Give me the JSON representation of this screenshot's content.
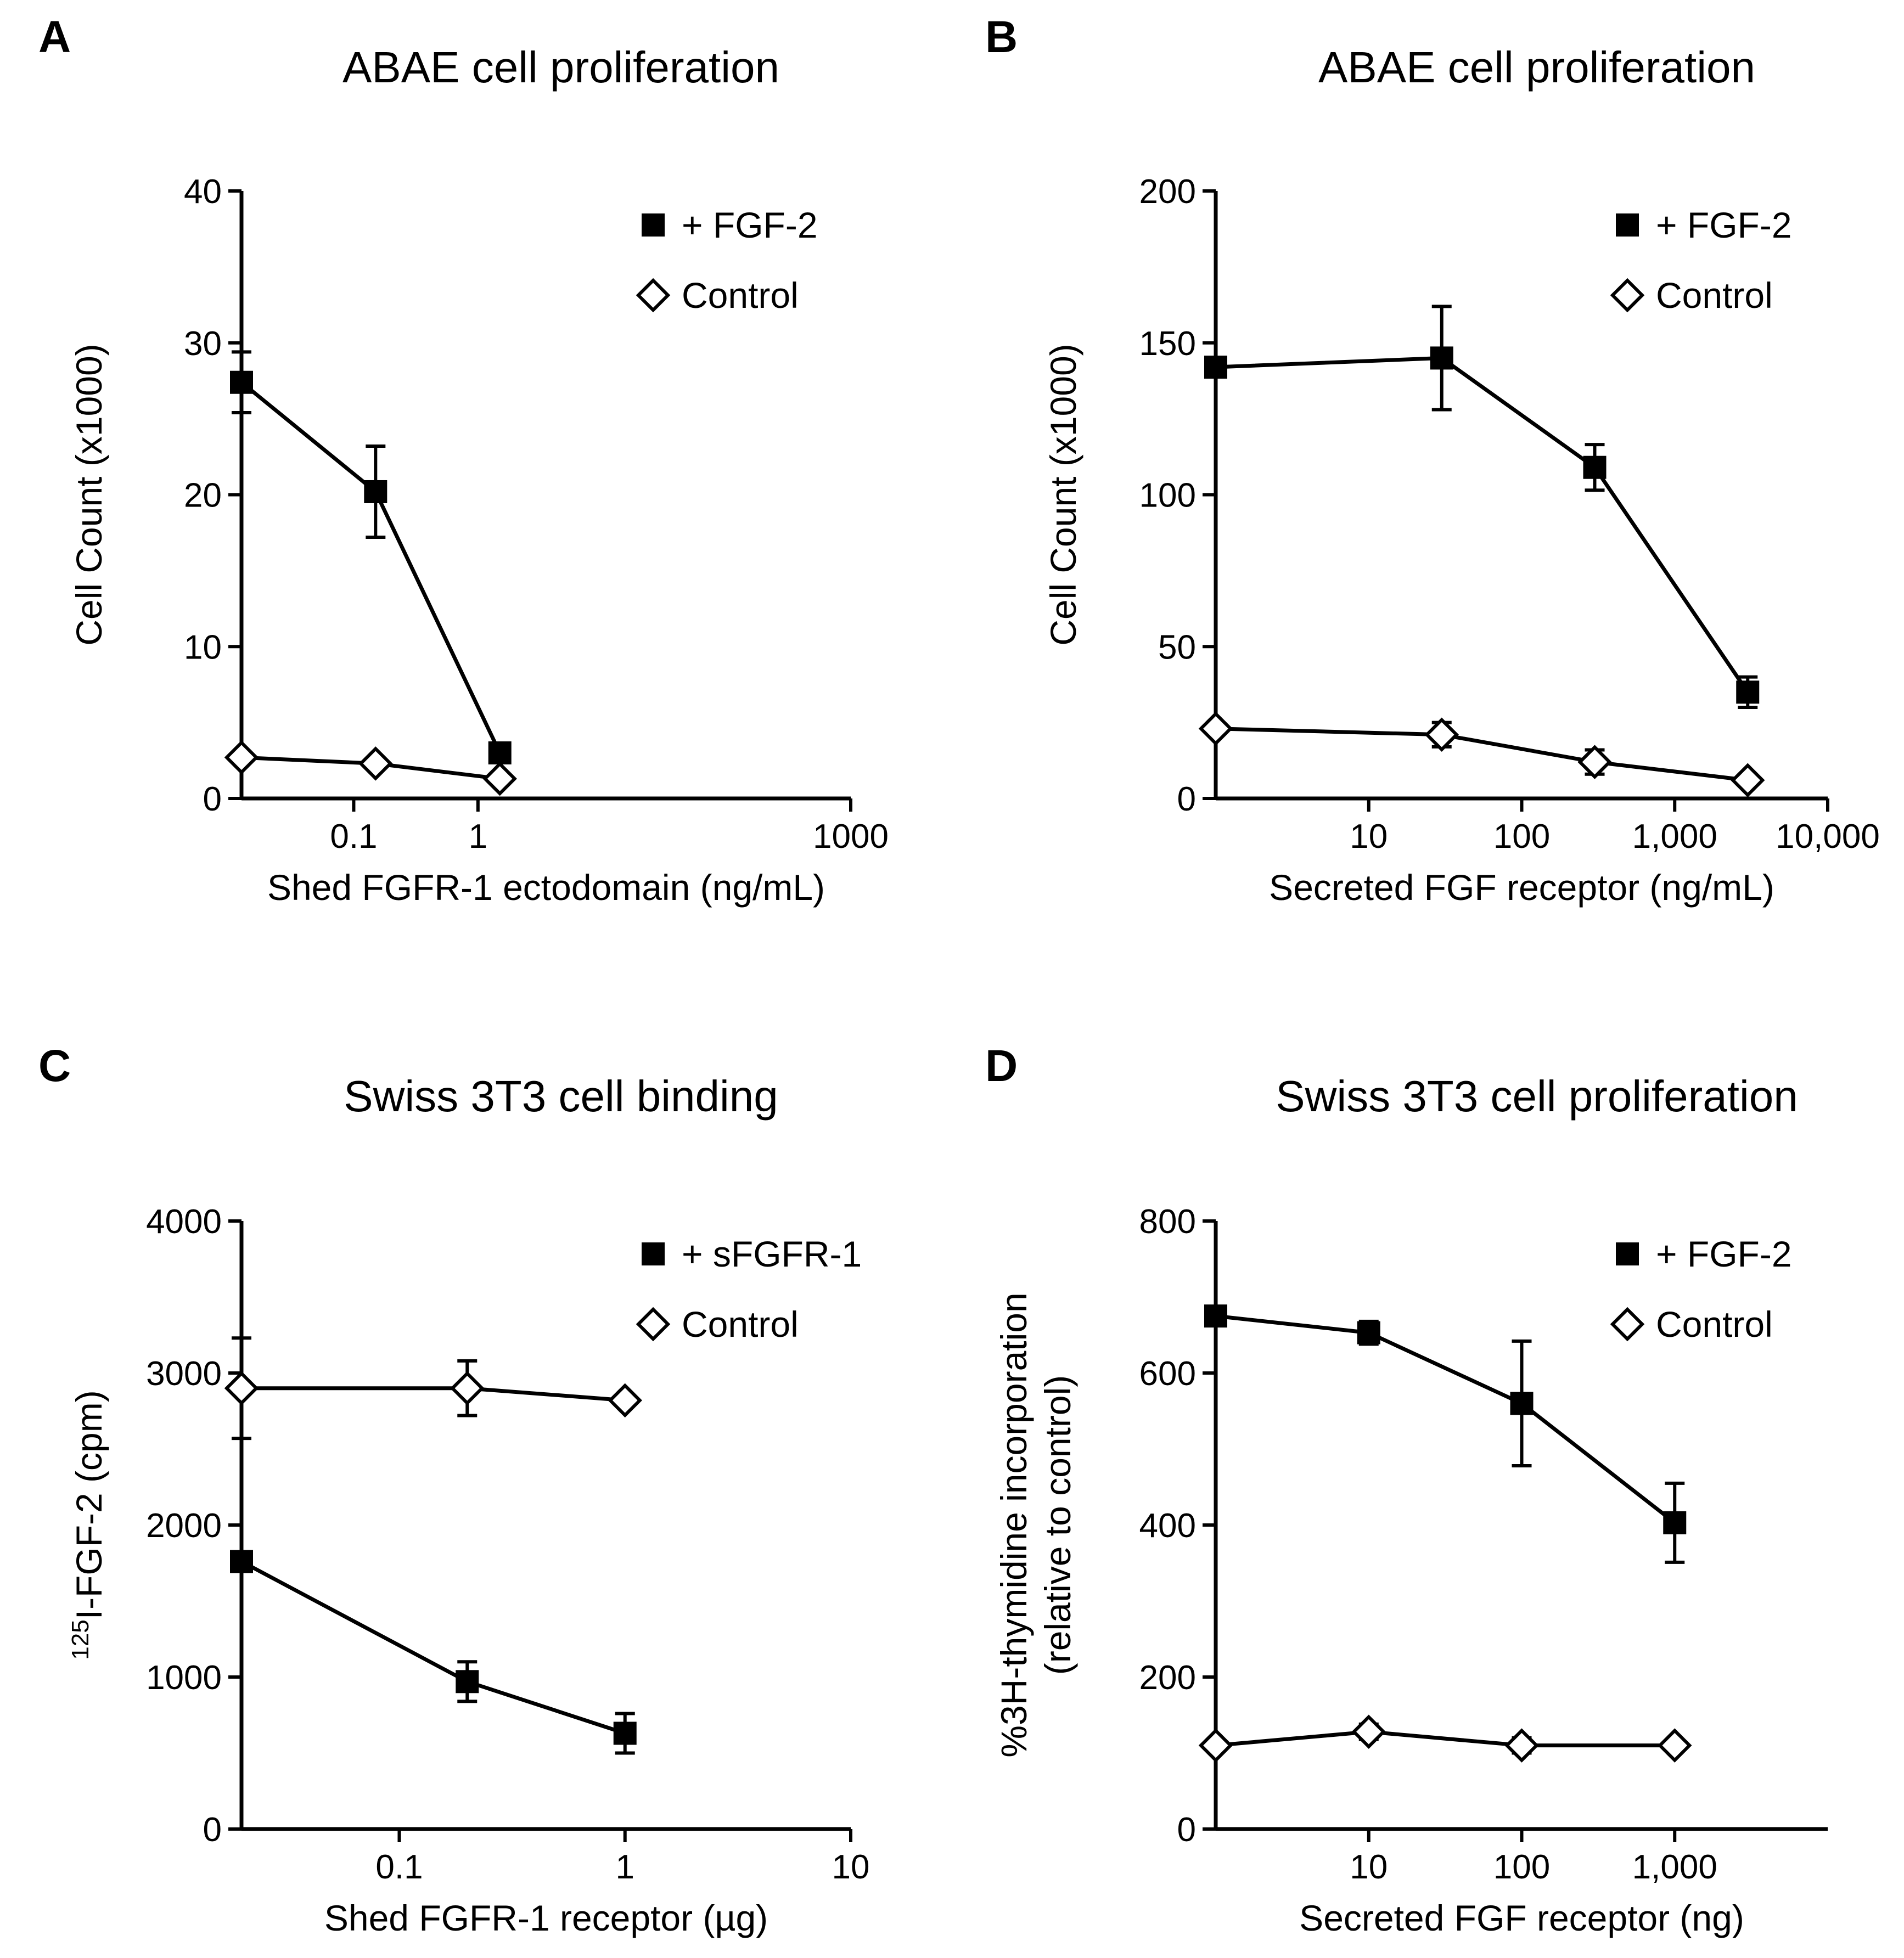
{
  "chart_data": [
    {
      "panel": "A",
      "type": "line",
      "title": "ABAE cell proliferation",
      "xlabel": "Shed FGFR-1 ectodomain (ng/mL)",
      "ylabel": "Cell Count (x1000)",
      "xscale": "log",
      "xlim": [
        0.0125,
        1000
      ],
      "ylim": [
        0,
        40
      ],
      "yticks": [
        0,
        10,
        20,
        30,
        40
      ],
      "xticks": [
        {
          "value": 0.1,
          "label": "0.1"
        },
        {
          "value": 1,
          "label": "1"
        },
        {
          "value": 1000,
          "label": "1000"
        }
      ],
      "legend_position": "top-right",
      "series": [
        {
          "name": "+ FGF-2",
          "marker": "filled-square",
          "points": [
            {
              "x": 0.0125,
              "y": 27.4,
              "err": 2.0
            },
            {
              "x": 0.15,
              "y": 20.2,
              "err": 3.0
            },
            {
              "x": 1.5,
              "y": 3.0,
              "err": 0.6
            }
          ]
        },
        {
          "name": "Control",
          "marker": "open-diamond",
          "points": [
            {
              "x": 0.0125,
              "y": 2.7,
              "err": 0
            },
            {
              "x": 0.15,
              "y": 2.3,
              "err": 0
            },
            {
              "x": 1.5,
              "y": 1.3,
              "err": 0
            }
          ]
        }
      ]
    },
    {
      "panel": "B",
      "type": "line",
      "title": "ABAE cell proliferation",
      "xlabel": "Secreted FGF receptor (ng/mL)",
      "ylabel": "Cell Count (x1000)",
      "xscale": "log",
      "xlim": [
        1,
        10000
      ],
      "ylim": [
        0,
        200
      ],
      "yticks": [
        0,
        50,
        100,
        150,
        200
      ],
      "xticks": [
        {
          "value": 10,
          "label": "10"
        },
        {
          "value": 100,
          "label": "100"
        },
        {
          "value": 1000,
          "label": "1,000"
        },
        {
          "value": 10000,
          "label": "10,000"
        }
      ],
      "legend_position": "top-right",
      "series": [
        {
          "name": "+ FGF-2",
          "marker": "filled-square",
          "points": [
            {
              "x": 1,
              "y": 142,
              "err": 0
            },
            {
              "x": 30,
              "y": 145,
              "err": 17
            },
            {
              "x": 300,
              "y": 109,
              "err": 7.5
            },
            {
              "x": 3000,
              "y": 35,
              "err": 5
            }
          ]
        },
        {
          "name": "Control",
          "marker": "open-diamond",
          "points": [
            {
              "x": 1,
              "y": 23,
              "err": 0
            },
            {
              "x": 30,
              "y": 21,
              "err": 4
            },
            {
              "x": 300,
              "y": 12,
              "err": 4
            },
            {
              "x": 3000,
              "y": 6,
              "err": 0
            }
          ]
        }
      ]
    },
    {
      "panel": "C",
      "type": "line",
      "title": "Swiss 3T3 cell binding",
      "xlabel": "Shed FGFR-1 receptor (µg)",
      "ylabel": "125I-FGF-2 (cpm)",
      "ylabel_superscript": "125",
      "ylabel_main": "I-FGF-2 (cpm)",
      "xscale": "log",
      "xlim": [
        0.02,
        10
      ],
      "ylim": [
        0,
        4000
      ],
      "yticks": [
        0,
        1000,
        2000,
        3000,
        4000
      ],
      "xticks": [
        {
          "value": 0.1,
          "label": "0.1"
        },
        {
          "value": 1,
          "label": "1"
        },
        {
          "value": 10,
          "label": "10"
        }
      ],
      "legend_position": "top-right",
      "series": [
        {
          "name": "+ sFGFR-1",
          "marker": "filled-square",
          "points": [
            {
              "x": 0.02,
              "y": 1760,
              "err": 0
            },
            {
              "x": 0.2,
              "y": 970,
              "err": 130
            },
            {
              "x": 1,
              "y": 630,
              "err": 130
            }
          ]
        },
        {
          "name": "Control",
          "marker": "open-diamond",
          "points": [
            {
              "x": 0.02,
              "y": 2900,
              "err": 330
            },
            {
              "x": 0.2,
              "y": 2900,
              "err": 180
            },
            {
              "x": 1,
              "y": 2820,
              "err": 0
            }
          ]
        }
      ]
    },
    {
      "panel": "D",
      "type": "line",
      "title": "Swiss 3T3 cell proliferation",
      "xlabel": "Secreted FGF receptor (ng)",
      "ylabel": "%3H-thymidine incorporation",
      "ylabel2": "(relative to control)",
      "xscale": "log",
      "xlim": [
        1,
        10000
      ],
      "ylim": [
        0,
        800
      ],
      "yticks": [
        0,
        200,
        400,
        600,
        800
      ],
      "xticks": [
        {
          "value": 10,
          "label": "10"
        },
        {
          "value": 100,
          "label": "100"
        },
        {
          "value": 1000,
          "label": "1,000"
        }
      ],
      "legend_position": "top-right",
      "series": [
        {
          "name": "+ FGF-2",
          "marker": "filled-square",
          "points": [
            {
              "x": 1,
              "y": 675,
              "err": 0
            },
            {
              "x": 10,
              "y": 653,
              "err": 15
            },
            {
              "x": 100,
              "y": 560,
              "err": 82
            },
            {
              "x": 1000,
              "y": 403,
              "err": 52
            }
          ]
        },
        {
          "name": "Control",
          "marker": "open-diamond",
          "points": [
            {
              "x": 1,
              "y": 110,
              "err": 0
            },
            {
              "x": 10,
              "y": 128,
              "err": 10
            },
            {
              "x": 100,
              "y": 110,
              "err": 10
            },
            {
              "x": 1000,
              "y": 110,
              "err": 0
            }
          ]
        }
      ]
    }
  ]
}
